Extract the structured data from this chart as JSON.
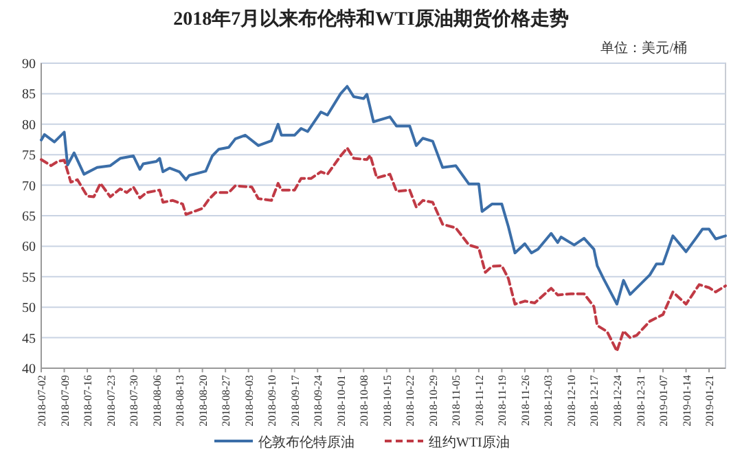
{
  "chart_data": {
    "type": "line",
    "title": "2018年7月以来布伦特和WTI原油期货价格走势",
    "annotations": [
      "单位：美元/桶"
    ],
    "xlim": [
      "2018-07-02",
      "2019-01-26"
    ],
    "xticks": [
      "2018-07-02",
      "2018-07-09",
      "2018-07-16",
      "2018-07-23",
      "2018-07-30",
      "2018-08-06",
      "2018-08-13",
      "2018-08-20",
      "2018-08-27",
      "2018-09-03",
      "2018-09-10",
      "2018-09-17",
      "2018-09-24",
      "2018-10-01",
      "2018-10-08",
      "2018-10-15",
      "2018-10-22",
      "2018-10-29",
      "2018-11-05",
      "2018-11-12",
      "2018-11-19",
      "2018-11-26",
      "2018-12-03",
      "2018-12-10",
      "2018-12-17",
      "2018-12-24",
      "2018-12-31",
      "2019-01-07",
      "2019-01-14",
      "2019-01-21"
    ],
    "ylim": [
      40,
      90
    ],
    "yticks": [
      40,
      45,
      50,
      55,
      60,
      65,
      70,
      75,
      80,
      85,
      90
    ],
    "grid": "y",
    "legend": "bottom",
    "series": [
      {
        "name": "伦敦布伦特原油",
        "color": "#3b6ea8",
        "line_style": "solid",
        "x": [
          "2018-07-02",
          "2018-07-03",
          "2018-07-06",
          "2018-07-09",
          "2018-07-10",
          "2018-07-12",
          "2018-07-15",
          "2018-07-19",
          "2018-07-23",
          "2018-07-26",
          "2018-07-30",
          "2018-08-01",
          "2018-08-02",
          "2018-08-06",
          "2018-08-07",
          "2018-08-08",
          "2018-08-10",
          "2018-08-13",
          "2018-08-15",
          "2018-08-16",
          "2018-08-21",
          "2018-08-23",
          "2018-08-25",
          "2018-08-28",
          "2018-08-30",
          "2018-09-02",
          "2018-09-06",
          "2018-09-10",
          "2018-09-12",
          "2018-09-13",
          "2018-09-17",
          "2018-09-19",
          "2018-09-21",
          "2018-09-25",
          "2018-09-27",
          "2018-10-01",
          "2018-10-03",
          "2018-10-05",
          "2018-10-08",
          "2018-10-09",
          "2018-10-11",
          "2018-10-16",
          "2018-10-18",
          "2018-10-22",
          "2018-10-24",
          "2018-10-26",
          "2018-10-29",
          "2018-11-01",
          "2018-11-05",
          "2018-11-09",
          "2018-11-12",
          "2018-11-13",
          "2018-11-16",
          "2018-11-19",
          "2018-11-21",
          "2018-11-23",
          "2018-11-26",
          "2018-11-28",
          "2018-11-30",
          "2018-12-04",
          "2018-12-06",
          "2018-12-07",
          "2018-12-11",
          "2018-12-14",
          "2018-12-17",
          "2018-12-18",
          "2018-12-20",
          "2018-12-24",
          "2018-12-26",
          "2018-12-28",
          "2019-01-03",
          "2019-01-05",
          "2019-01-07",
          "2019-01-10",
          "2019-01-14",
          "2019-01-17",
          "2019-01-19",
          "2019-01-21",
          "2019-01-23",
          "2019-01-26"
        ],
        "values": [
          77.4,
          78.3,
          77.1,
          78.7,
          73.3,
          75.3,
          71.8,
          72.9,
          73.2,
          74.4,
          74.8,
          72.6,
          73.5,
          73.9,
          74.4,
          72.2,
          72.8,
          72.2,
          70.9,
          71.6,
          72.3,
          74.8,
          75.9,
          76.2,
          77.6,
          78.2,
          76.5,
          77.3,
          80.0,
          78.2,
          78.2,
          79.3,
          78.8,
          82.0,
          81.5,
          85.0,
          86.2,
          84.5,
          84.2,
          84.9,
          80.4,
          81.2,
          79.7,
          79.7,
          76.5,
          77.7,
          77.2,
          72.9,
          73.2,
          70.2,
          70.2,
          65.7,
          66.9,
          66.9,
          63.2,
          58.9,
          60.4,
          58.9,
          59.5,
          62.1,
          60.6,
          61.5,
          60.2,
          61.3,
          59.5,
          56.8,
          54.6,
          50.5,
          54.4,
          52.1,
          55.3,
          57.1,
          57.1,
          61.7,
          59.1,
          61.3,
          62.8,
          62.8,
          61.2,
          61.7
        ]
      },
      {
        "name": "纽约WTI原油",
        "color": "#c03a45",
        "line_style": "dashed",
        "x": [
          "2018-07-02",
          "2018-07-05",
          "2018-07-07",
          "2018-07-09",
          "2018-07-11",
          "2018-07-13",
          "2018-07-16",
          "2018-07-18",
          "2018-07-20",
          "2018-07-23",
          "2018-07-26",
          "2018-07-28",
          "2018-07-30",
          "2018-08-01",
          "2018-08-03",
          "2018-08-07",
          "2018-08-08",
          "2018-08-11",
          "2018-08-14",
          "2018-08-15",
          "2018-08-20",
          "2018-08-22",
          "2018-08-24",
          "2018-08-28",
          "2018-08-30",
          "2018-09-04",
          "2018-09-06",
          "2018-09-10",
          "2018-09-12",
          "2018-09-13",
          "2018-09-17",
          "2018-09-19",
          "2018-09-22",
          "2018-09-25",
          "2018-09-27",
          "2018-10-01",
          "2018-10-03",
          "2018-10-05",
          "2018-10-09",
          "2018-10-10",
          "2018-10-12",
          "2018-10-16",
          "2018-10-18",
          "2018-10-22",
          "2018-10-24",
          "2018-10-26",
          "2018-10-29",
          "2018-11-01",
          "2018-11-05",
          "2018-11-09",
          "2018-11-12",
          "2018-11-14",
          "2018-11-16",
          "2018-11-19",
          "2018-11-21",
          "2018-11-23",
          "2018-11-26",
          "2018-11-29",
          "2018-12-04",
          "2018-12-06",
          "2018-12-10",
          "2018-12-14",
          "2018-12-17",
          "2018-12-18",
          "2018-12-21",
          "2018-12-24",
          "2018-12-26",
          "2018-12-28",
          "2018-12-30",
          "2019-01-03",
          "2019-01-07",
          "2019-01-10",
          "2019-01-14",
          "2019-01-18",
          "2019-01-21",
          "2019-01-23",
          "2019-01-26"
        ],
        "values": [
          74.2,
          73.2,
          73.9,
          74.1,
          70.5,
          70.9,
          68.2,
          68.1,
          70.3,
          68.1,
          69.4,
          68.8,
          69.7,
          67.9,
          68.8,
          69.2,
          67.2,
          67.5,
          66.9,
          65.2,
          66.2,
          67.7,
          68.8,
          68.8,
          69.9,
          69.7,
          67.8,
          67.5,
          70.3,
          69.2,
          69.2,
          71.1,
          71.1,
          72.2,
          71.8,
          74.8,
          76.1,
          74.4,
          74.2,
          74.9,
          71.2,
          71.8,
          69.0,
          69.2,
          66.4,
          67.5,
          67.2,
          63.6,
          63.0,
          60.2,
          59.7,
          55.7,
          56.7,
          56.8,
          54.7,
          50.5,
          51.0,
          50.7,
          53.1,
          52.0,
          52.2,
          52.2,
          50.1,
          47.0,
          46.0,
          42.8,
          46.1,
          45.0,
          45.4,
          47.7,
          48.8,
          52.5,
          50.5,
          53.7,
          53.2,
          52.5,
          53.5
        ]
      }
    ]
  }
}
